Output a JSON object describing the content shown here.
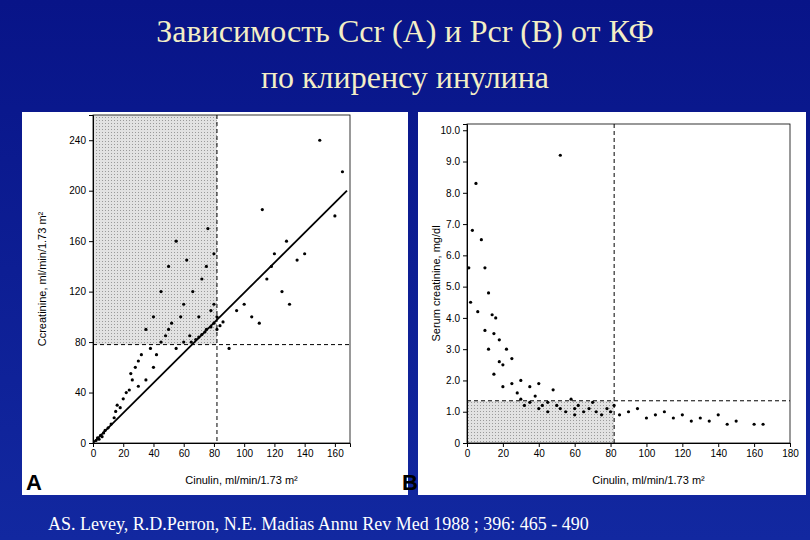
{
  "slide": {
    "title_lines": [
      "Зависимость Ccr (А) и Pcr (В) от КФ",
      "по клиренсу инулина"
    ],
    "citation": "AS. Levey, R.D.Perron, N.E. Madias Annu Rev Med 1988 ; 396: 465 - 490"
  },
  "chart_data": [
    {
      "type": "scatter",
      "panel_label": "A",
      "x_label": "Cinulin, ml/min/1.73 m²",
      "y_label": "Ccreatinine, ml/min/1.73 m²",
      "xlim": [
        0,
        170
      ],
      "ylim": [
        0,
        260
      ],
      "xticks": [
        0,
        20,
        40,
        60,
        80,
        100,
        120,
        140,
        160
      ],
      "yticks": [
        0,
        40,
        80,
        120,
        160,
        200,
        240
      ],
      "shaded_region": {
        "x": [
          0,
          82
        ],
        "y": [
          78,
          260
        ]
      },
      "reference_lines": {
        "x": 82,
        "y": 78
      },
      "series": [
        {
          "type": "scatter",
          "marker": "circle",
          "color": "#000000",
          "x": [
            2,
            3,
            4,
            5,
            6,
            7,
            8,
            10,
            12,
            14,
            15,
            16,
            18,
            20,
            22,
            24,
            25,
            26,
            28,
            30,
            30,
            32,
            35,
            35,
            38,
            40,
            40,
            42,
            45,
            45,
            48,
            50,
            50,
            52,
            55,
            55,
            58,
            60,
            60,
            62,
            64,
            65,
            66,
            68,
            70,
            70,
            72,
            72,
            74,
            75,
            75,
            76,
            78,
            78,
            80,
            80,
            80,
            82,
            82,
            84,
            86,
            90,
            95,
            100,
            105,
            110,
            112,
            115,
            118,
            120,
            125,
            128,
            130,
            135,
            140,
            150,
            160,
            165
          ],
          "values": [
            2,
            4,
            3,
            6,
            5,
            8,
            10,
            12,
            15,
            20,
            25,
            30,
            28,
            35,
            40,
            42,
            55,
            50,
            60,
            45,
            65,
            70,
            50,
            90,
            75,
            60,
            100,
            70,
            80,
            120,
            85,
            90,
            140,
            95,
            160,
            75,
            100,
            110,
            80,
            145,
            85,
            80,
            120,
            82,
            84,
            100,
            130,
            86,
            88,
            140,
            90,
            170,
            92,
            105,
            110,
            95,
            150,
            100,
            90,
            93,
            96,
            75,
            105,
            110,
            100,
            95,
            185,
            130,
            140,
            150,
            120,
            160,
            110,
            145,
            150,
            240,
            180,
            215
          ]
        },
        {
          "type": "line",
          "line_style": "solid",
          "color": "#000000",
          "x": [
            0,
            168
          ],
          "values": [
            0,
            200
          ]
        }
      ]
    },
    {
      "type": "scatter",
      "panel_label": "B",
      "x_label": "Cinulin, ml/min/1.73 m²",
      "y_label": "Serum creatinine, mg/dl",
      "xlim": [
        0,
        180
      ],
      "ylim": [
        0,
        10.2
      ],
      "xticks": [
        0,
        20,
        40,
        60,
        80,
        100,
        120,
        140,
        160,
        180
      ],
      "yticks": [
        0,
        {
          "value": 1,
          "label": "1.0"
        },
        {
          "value": 2,
          "label": "2.0"
        },
        {
          "value": 3,
          "label": "3.0"
        },
        {
          "value": 4,
          "label": "4.0"
        },
        {
          "value": 5,
          "label": "5.0"
        },
        {
          "value": 6,
          "label": "6.0"
        },
        {
          "value": 7,
          "label": "7.0"
        },
        {
          "value": 8,
          "label": "8.0"
        },
        {
          "value": 9,
          "label": "9.0"
        },
        {
          "value": 10,
          "label": "10.0"
        }
      ],
      "shaded_region": {
        "x": [
          0,
          82
        ],
        "y": [
          0,
          1.35
        ]
      },
      "reference_lines": {
        "x": 82,
        "y": 1.35
      },
      "series": [
        {
          "type": "scatter",
          "marker": "circle",
          "color": "#000000",
          "x": [
            1,
            2,
            3,
            5,
            6,
            8,
            10,
            10,
            12,
            12,
            14,
            15,
            15,
            16,
            18,
            18,
            20,
            20,
            22,
            25,
            25,
            28,
            30,
            30,
            32,
            35,
            35,
            38,
            40,
            40,
            42,
            45,
            45,
            48,
            50,
            52,
            52,
            55,
            58,
            60,
            60,
            62,
            65,
            68,
            70,
            72,
            75,
            78,
            80,
            82,
            85,
            90,
            95,
            100,
            105,
            110,
            115,
            120,
            125,
            130,
            135,
            140,
            145,
            150,
            160,
            165
          ],
          "values": [
            5.6,
            4.5,
            6.8,
            8.3,
            4.2,
            6.5,
            5.6,
            3.6,
            4.8,
            3.0,
            4.1,
            3.5,
            2.2,
            4.0,
            3.3,
            2.6,
            2.5,
            1.8,
            3.0,
            2.7,
            1.9,
            1.6,
            2.0,
            1.4,
            1.2,
            1.8,
            1.3,
            1.5,
            1.1,
            1.9,
            1.2,
            1.3,
            1.0,
            1.7,
            1.2,
            9.2,
            1.1,
            1.0,
            1.4,
            1.1,
            0.9,
            1.2,
            1.0,
            1.1,
            1.3,
            1.0,
            0.9,
            1.1,
            1.0,
            1.2,
            0.9,
            1.0,
            1.1,
            0.8,
            0.9,
            1.0,
            0.8,
            0.9,
            0.7,
            0.8,
            0.7,
            0.9,
            0.6,
            0.7,
            0.6,
            0.6
          ]
        }
      ]
    }
  ]
}
